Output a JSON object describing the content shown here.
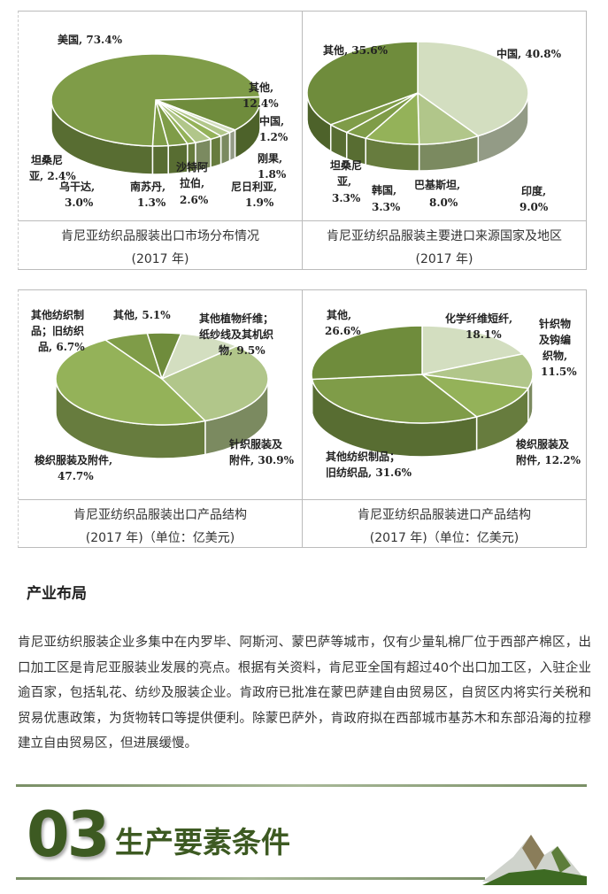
{
  "chart_data": [
    {
      "type": "pie",
      "title": "肯尼亚纺织品服装出口市场分布情况",
      "subtitle": "(2017 年)",
      "slices": [
        {
          "label": "其他",
          "value": 12.4
        },
        {
          "label": "中国",
          "value": 1.2
        },
        {
          "label": "刚果",
          "value": 1.8
        },
        {
          "label": "尼日利亚",
          "value": 1.9
        },
        {
          "label": "沙特阿拉伯",
          "value": 2.6
        },
        {
          "label": "南苏丹",
          "value": 1.3
        },
        {
          "label": "乌干达",
          "value": 3.0
        },
        {
          "label": "坦桑尼亚",
          "value": 2.4
        },
        {
          "label": "美国",
          "value": 73.4
        }
      ],
      "labels": [
        "其他,",
        "12.4%",
        "中国,",
        "1.2%",
        "刚果,",
        "1.8%",
        "尼日利亚,",
        "1.9%",
        "沙特阿",
        "拉伯,",
        "2.6%",
        "南苏丹,",
        "1.3%",
        "乌干达,",
        "3.0%",
        "坦桑尼",
        "亚, 2.4%",
        "美国, 73.4%"
      ]
    },
    {
      "type": "pie",
      "title": "肯尼亚纺织品服装主要进口来源国家及地区",
      "subtitle": "(2017 年)",
      "slices": [
        {
          "label": "中国",
          "value": 40.8
        },
        {
          "label": "印度",
          "value": 9.0
        },
        {
          "label": "巴基斯坦",
          "value": 8.0
        },
        {
          "label": "韩国",
          "value": 3.3
        },
        {
          "label": "坦桑尼亚",
          "value": 3.3
        },
        {
          "label": "其他",
          "value": 35.6
        }
      ],
      "labels": [
        "中国, 40.8%",
        "印度,",
        "9.0%",
        "巴基斯坦,",
        "8.0%",
        "韩国,",
        "3.3%",
        "坦桑尼",
        "亚,",
        "3.3%",
        "其他, 35.6%"
      ]
    },
    {
      "type": "pie",
      "title": "肯尼亚纺织品服装出口产品结构",
      "subtitle": "(2017 年)（单位：亿美元)",
      "slices": [
        {
          "label": "其他",
          "value": 5.1
        },
        {
          "label": "其他植物纤维；纸纱线及其机织物",
          "value": 9.5
        },
        {
          "label": "针织服装及附件",
          "value": 30.9
        },
        {
          "label": "梭织服装及附件",
          "value": 47.7
        },
        {
          "label": "其他纺织制品；旧纺织品",
          "value": 6.7
        }
      ],
      "labels": [
        "其他, 5.1%",
        "其他植物纤维；",
        "纸纱线及其机织",
        "物, 9.5%",
        "针织服装及",
        "附件, 30.9%",
        "梭织服装及附件,",
        "47.7%",
        "其他纺织制",
        "品；旧纺织",
        "品, 6.7%"
      ]
    },
    {
      "type": "pie",
      "title": "肯尼亚纺织品服装进口产品结构",
      "subtitle": "(2017 年)（单位：亿美元)",
      "slices": [
        {
          "label": "化学纤维短纤",
          "value": 18.1
        },
        {
          "label": "针织物及钩编织物",
          "value": 11.5
        },
        {
          "label": "梭织服装及附件",
          "value": 12.2
        },
        {
          "label": "其他纺织制品；旧纺织品",
          "value": 31.6
        },
        {
          "label": "其他",
          "value": 26.6
        }
      ],
      "labels": [
        "化学纤维短纤,",
        "18.1%",
        "针织物",
        "及钩编",
        "织物,",
        "11.5%",
        "梭织服装及",
        "附件, 12.2%",
        "其他纺织制品；",
        "旧纺织品, 31.6%",
        "其他,",
        "26.6%"
      ]
    }
  ],
  "section": {
    "heading": "产业布局",
    "paragraph": "肯尼亚纺织服装企业多集中在内罗毕、阿斯河、蒙巴萨等城市，仅有少量轧棉厂位于西部产棉区，出口加工区是肯尼亚服装业发展的亮点。根据有关资料，肯尼亚全国有超过40个出口加工区，入驻企业逾百家，包括轧花、纺纱及服装企业。肯政府已批准在蒙巴萨建自由贸易区，自贸区内将实行关税和贸易优惠政策，为货物转口等提供便利。除蒙巴萨外，肯政府拟在西部城市基苏木和东部沿海的拉穆建立自由贸易区，但进展缓慢。"
  },
  "banner": {
    "number": "03",
    "title": "生产要素条件"
  },
  "colors": {
    "c1": "#6f8c3c",
    "c2": "#7f9c48",
    "c3": "#94b259",
    "c4": "#b1c68a",
    "c5": "#d3dec0",
    "green": "#3d5a22"
  }
}
